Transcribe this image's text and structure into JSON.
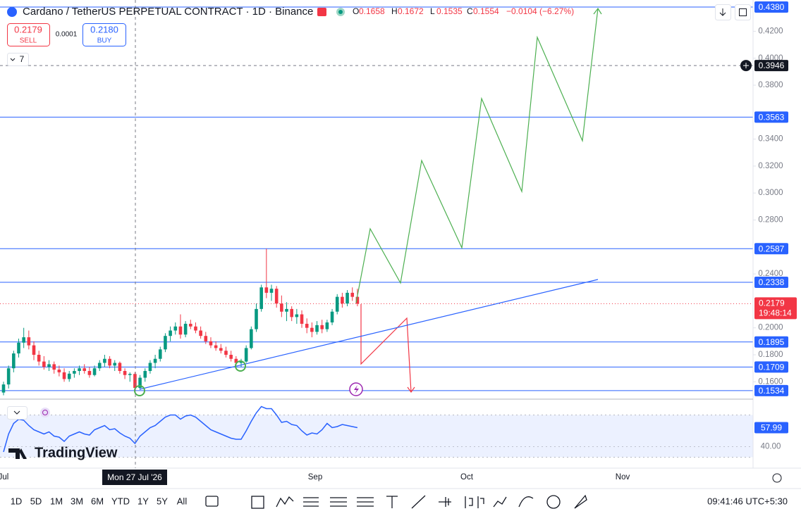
{
  "header": {
    "title": "Cardano / TetherUS PERPETUAL CONTRACT · 1D · Binance",
    "ohlc_letters": [
      "O",
      "H",
      "L",
      "C"
    ],
    "ohlc_values": [
      "0.1658",
      "0.1672",
      "0.1535",
      "0.1554"
    ],
    "change": "−0.0104 (−6.27%)",
    "sell_price": "0.2179",
    "sell_label": "SELL",
    "spread": "0.0001",
    "buy_price": "0.2180",
    "buy_label": "BUY",
    "indicator_count": "7"
  },
  "chart_data": {
    "type": "candlestick",
    "up_color": "#089981",
    "down_color": "#f23645",
    "ylim": [
      0.1471,
      0.4432
    ],
    "yticks": [
      {
        "value": 0.16,
        "label": "0.1600"
      },
      {
        "value": 0.18,
        "label": "0.1800"
      },
      {
        "value": 0.2,
        "label": "0.2000"
      },
      {
        "value": 0.24,
        "label": "0.2400"
      },
      {
        "value": 0.28,
        "label": "0.2800"
      },
      {
        "value": 0.3,
        "label": "0.3000"
      },
      {
        "value": 0.32,
        "label": "0.3200"
      },
      {
        "value": 0.34,
        "label": "0.3400"
      },
      {
        "value": 0.38,
        "label": "0.3800"
      },
      {
        "value": 0.4,
        "label": "0.4000"
      },
      {
        "value": 0.42,
        "label": "0.4200"
      }
    ],
    "xticks": [
      "Jul",
      "Sep",
      "Oct",
      "Nov"
    ],
    "levels": [
      {
        "value": 0.438,
        "label": "0.4380"
      },
      {
        "value": 0.3563,
        "label": "0.3563"
      },
      {
        "value": 0.2587,
        "label": "0.2587"
      },
      {
        "value": 0.2338,
        "label": "0.2338"
      },
      {
        "value": 0.1895,
        "label": "0.1895"
      },
      {
        "value": 0.1709,
        "label": "0.1709"
      },
      {
        "value": 0.1534,
        "label": "0.1534"
      }
    ],
    "level_color": "#2962ff",
    "crosshair": {
      "x_label": "Mon 27 Jul '26",
      "price": {
        "value": 0.3946,
        "label": "0.3946"
      }
    },
    "last": {
      "value": 0.2179,
      "label": "0.2179",
      "countdown": "19:48:14"
    },
    "ohlc": [
      [
        0.152,
        0.16,
        0.15,
        0.158
      ],
      [
        0.158,
        0.172,
        0.155,
        0.17
      ],
      [
        0.17,
        0.183,
        0.167,
        0.181
      ],
      [
        0.181,
        0.192,
        0.178,
        0.189
      ],
      [
        0.189,
        0.2,
        0.185,
        0.193
      ],
      [
        0.193,
        0.198,
        0.184,
        0.187
      ],
      [
        0.187,
        0.19,
        0.176,
        0.18
      ],
      [
        0.18,
        0.183,
        0.172,
        0.175
      ],
      [
        0.175,
        0.179,
        0.169,
        0.171
      ],
      [
        0.171,
        0.176,
        0.168,
        0.173
      ],
      [
        0.173,
        0.175,
        0.166,
        0.169
      ],
      [
        0.169,
        0.172,
        0.164,
        0.167
      ],
      [
        0.167,
        0.17,
        0.16,
        0.162
      ],
      [
        0.162,
        0.168,
        0.16,
        0.166
      ],
      [
        0.166,
        0.17,
        0.163,
        0.168
      ],
      [
        0.168,
        0.172,
        0.165,
        0.17
      ],
      [
        0.17,
        0.173,
        0.166,
        0.168
      ],
      [
        0.168,
        0.171,
        0.163,
        0.165
      ],
      [
        0.165,
        0.172,
        0.164,
        0.17
      ],
      [
        0.17,
        0.176,
        0.168,
        0.174
      ],
      [
        0.174,
        0.18,
        0.171,
        0.177
      ],
      [
        0.177,
        0.179,
        0.17,
        0.172
      ],
      [
        0.172,
        0.176,
        0.168,
        0.174
      ],
      [
        0.174,
        0.175,
        0.166,
        0.168
      ],
      [
        0.168,
        0.17,
        0.162,
        0.165
      ],
      [
        0.165,
        0.167,
        0.16,
        0.1658
      ],
      [
        0.1658,
        0.1672,
        0.1535,
        0.1554
      ],
      [
        0.1554,
        0.165,
        0.154,
        0.163
      ],
      [
        0.163,
        0.17,
        0.16,
        0.168
      ],
      [
        0.168,
        0.176,
        0.166,
        0.174
      ],
      [
        0.174,
        0.18,
        0.17,
        0.177
      ],
      [
        0.177,
        0.186,
        0.175,
        0.184
      ],
      [
        0.184,
        0.196,
        0.182,
        0.194
      ],
      [
        0.194,
        0.201,
        0.19,
        0.198
      ],
      [
        0.198,
        0.204,
        0.195,
        0.201
      ],
      [
        0.201,
        0.21,
        0.192,
        0.195
      ],
      [
        0.195,
        0.205,
        0.193,
        0.203
      ],
      [
        0.203,
        0.206,
        0.199,
        0.201
      ],
      [
        0.201,
        0.204,
        0.196,
        0.198
      ],
      [
        0.198,
        0.201,
        0.192,
        0.194
      ],
      [
        0.194,
        0.197,
        0.188,
        0.19
      ],
      [
        0.19,
        0.193,
        0.185,
        0.187
      ],
      [
        0.187,
        0.19,
        0.183,
        0.185
      ],
      [
        0.185,
        0.188,
        0.181,
        0.183
      ],
      [
        0.183,
        0.186,
        0.178,
        0.18
      ],
      [
        0.18,
        0.183,
        0.175,
        0.177
      ],
      [
        0.177,
        0.179,
        0.172,
        0.174
      ],
      [
        0.174,
        0.177,
        0.171,
        0.175
      ],
      [
        0.175,
        0.187,
        0.174,
        0.185
      ],
      [
        0.185,
        0.201,
        0.184,
        0.199
      ],
      [
        0.199,
        0.218,
        0.197,
        0.214
      ],
      [
        0.214,
        0.232,
        0.212,
        0.23
      ],
      [
        0.23,
        0.2587,
        0.222,
        0.226
      ],
      [
        0.226,
        0.232,
        0.22,
        0.229
      ],
      [
        0.229,
        0.231,
        0.215,
        0.218
      ],
      [
        0.218,
        0.224,
        0.208,
        0.212
      ],
      [
        0.212,
        0.219,
        0.205,
        0.214
      ],
      [
        0.214,
        0.216,
        0.205,
        0.208
      ],
      [
        0.208,
        0.214,
        0.203,
        0.21
      ],
      [
        0.21,
        0.213,
        0.2,
        0.203
      ],
      [
        0.203,
        0.207,
        0.196,
        0.2
      ],
      [
        0.2,
        0.204,
        0.193,
        0.197
      ],
      [
        0.197,
        0.205,
        0.195,
        0.202
      ],
      [
        0.202,
        0.206,
        0.196,
        0.199
      ],
      [
        0.199,
        0.206,
        0.197,
        0.204
      ],
      [
        0.204,
        0.214,
        0.202,
        0.212
      ],
      [
        0.212,
        0.225,
        0.21,
        0.223
      ],
      [
        0.223,
        0.226,
        0.215,
        0.218
      ],
      [
        0.218,
        0.228,
        0.216,
        0.226
      ],
      [
        0.226,
        0.23,
        0.22,
        0.223
      ],
      [
        0.223,
        0.229,
        0.216,
        0.2179
      ]
    ],
    "rsi": {
      "color": "#2962ff",
      "ylim": [
        25,
        85
      ],
      "band": [
        30,
        70
      ],
      "yticks": [
        {
          "value": 40,
          "label": "40.00"
        }
      ],
      "last": {
        "value": 57.99,
        "label": "57.99"
      },
      "values": [
        35,
        52,
        62,
        66,
        65,
        60,
        56,
        54,
        52,
        54,
        50,
        49,
        45,
        50,
        52,
        54,
        52,
        51,
        56,
        58,
        60,
        56,
        57,
        53,
        50,
        48,
        43,
        50,
        54,
        58,
        60,
        64,
        68,
        70,
        70,
        66,
        69,
        70,
        68,
        64,
        60,
        56,
        54,
        52,
        50,
        48,
        47,
        47,
        55,
        64,
        72,
        78,
        76,
        76,
        70,
        63,
        64,
        61,
        60,
        55,
        51,
        53,
        52,
        56,
        62,
        58,
        59,
        61,
        60,
        59,
        58
      ]
    }
  },
  "branding": "TradingView",
  "toolbar": {
    "timeframes": [
      "1D",
      "5D",
      "1M",
      "3M",
      "6M",
      "YTD",
      "1Y",
      "5Y",
      "All"
    ],
    "clock": "09:41:46 UTC+5:30"
  }
}
